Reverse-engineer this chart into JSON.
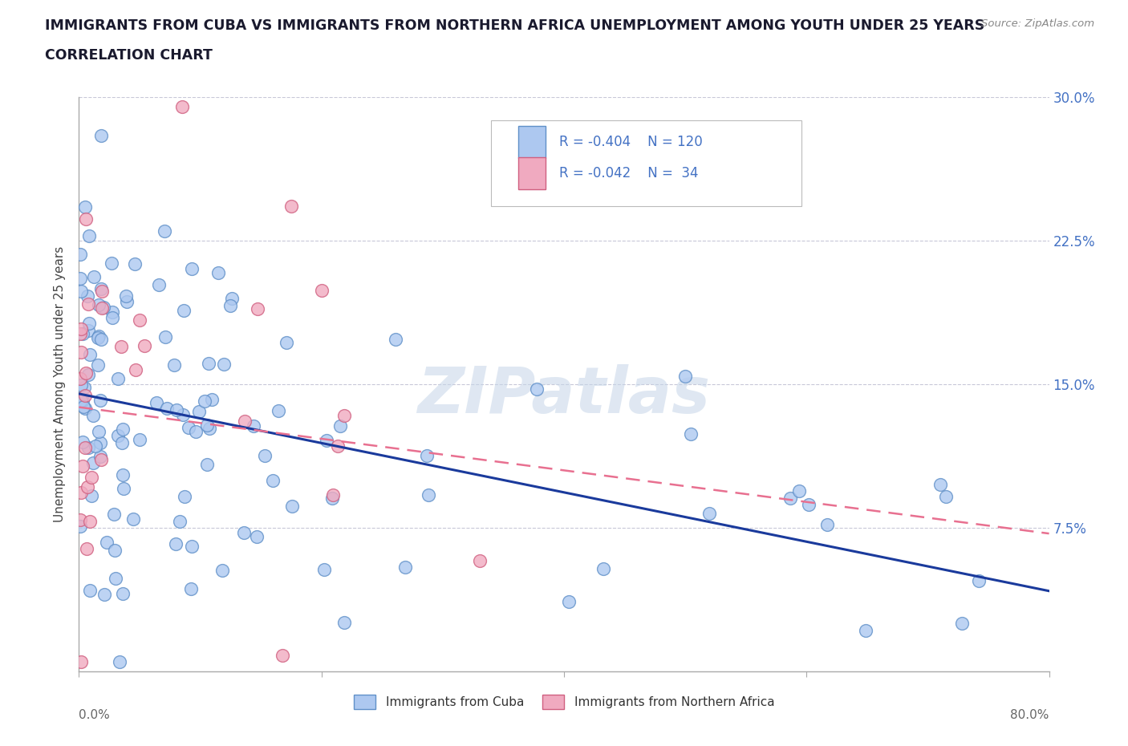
{
  "title_line1": "IMMIGRANTS FROM CUBA VS IMMIGRANTS FROM NORTHERN AFRICA UNEMPLOYMENT AMONG YOUTH UNDER 25 YEARS",
  "title_line2": "CORRELATION CHART",
  "source": "Source: ZipAtlas.com",
  "ylabel": "Unemployment Among Youth under 25 years",
  "xlim": [
    0.0,
    0.8
  ],
  "ylim": [
    0.0,
    0.3
  ],
  "yticks": [
    0.0,
    0.075,
    0.15,
    0.225,
    0.3
  ],
  "ytick_labels": [
    "",
    "7.5%",
    "15.0%",
    "22.5%",
    "30.0%"
  ],
  "xticks": [
    0.0,
    0.2,
    0.4,
    0.6,
    0.8
  ],
  "xtick_labels_bottom": [
    "0.0%",
    "",
    "",
    "",
    "80.0%"
  ],
  "cuba_color": "#adc8f0",
  "cuba_edge_color": "#6090c8",
  "africa_color": "#f0aac0",
  "africa_edge_color": "#d06080",
  "cuba_line_color": "#1a3a9c",
  "africa_line_color": "#e87090",
  "watermark_text": "ZIPatlas",
  "legend_label_cuba": "Immigrants from Cuba",
  "legend_label_africa": "Immigrants from Northern Africa",
  "cuba_R": -0.404,
  "cuba_N": 120,
  "africa_R": -0.042,
  "africa_N": 34,
  "background_color": "#ffffff",
  "grid_color": "#c8c8d8",
  "title_color": "#1a1a2e",
  "axis_label_color": "#444444",
  "tick_label_color": "#666666",
  "right_ytick_color": "#4472c4",
  "cuba_trend_start_y": 0.145,
  "cuba_trend_end_y": 0.042,
  "africa_trend_start_y": 0.138,
  "africa_trend_end_y": 0.072
}
